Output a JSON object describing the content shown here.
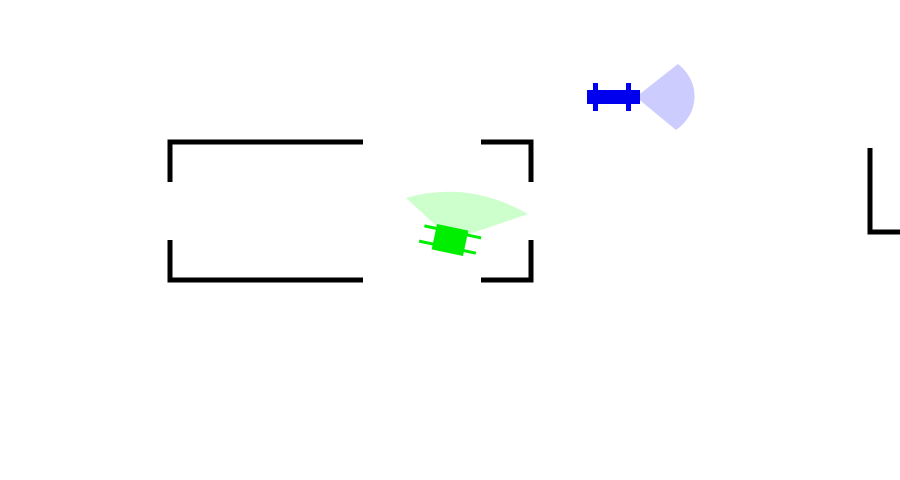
{
  "scene": {
    "background": "#ffffff",
    "wall_color": "#000000"
  },
  "agents": [
    {
      "id": "player",
      "body_color": "#00ee00",
      "vision_color": "#ccffcc"
    },
    {
      "id": "guard",
      "body_color": "#0000ee",
      "vision_color": "#ccccff"
    }
  ]
}
